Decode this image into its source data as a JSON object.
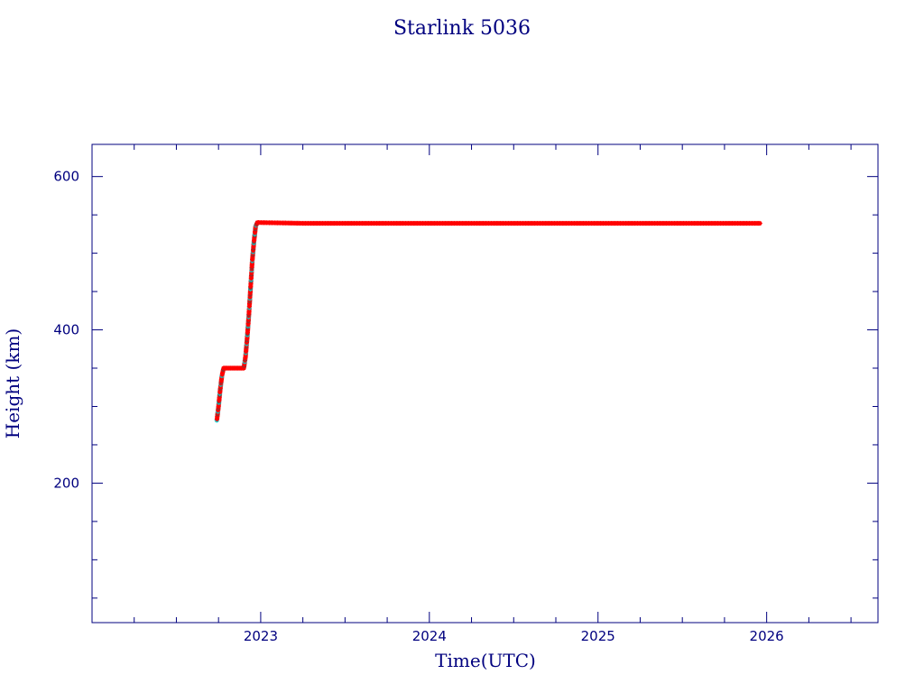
{
  "chart_data": {
    "type": "scatter",
    "title": "Starlink 5036",
    "xlabel": "Time(UTC)",
    "ylabel": "Height (km)",
    "xlim": [
      2022.0,
      2026.66
    ],
    "ylim": [
      18,
      642
    ],
    "x_ticks": [
      2023,
      2024,
      2025,
      2026
    ],
    "y_ticks": [
      200,
      400,
      600
    ],
    "grid": false,
    "colors": {
      "frame": "#00007f",
      "points": "#ff0000",
      "points_alt": "#00cccc",
      "points_dark": "#883333"
    },
    "series": [
      {
        "x": [
          2022.74,
          2022.75,
          2022.76,
          2022.77,
          2022.78,
          2022.8,
          2022.85,
          2022.9,
          2022.91,
          2022.92,
          2022.93,
          2022.94,
          2022.95,
          2022.96,
          2022.97,
          2022.98,
          2023.25,
          2023.5,
          2023.75,
          2024.0,
          2024.25,
          2024.5,
          2024.75,
          2025.0,
          2025.25,
          2025.5,
          2025.75,
          2025.96
        ],
        "y": [
          282,
          300,
          322,
          340,
          350,
          350,
          350,
          350,
          365,
          390,
          420,
          455,
          490,
          515,
          535,
          540,
          539,
          539,
          539,
          539,
          539,
          539,
          539,
          539,
          539,
          539,
          539,
          539
        ]
      }
    ]
  }
}
